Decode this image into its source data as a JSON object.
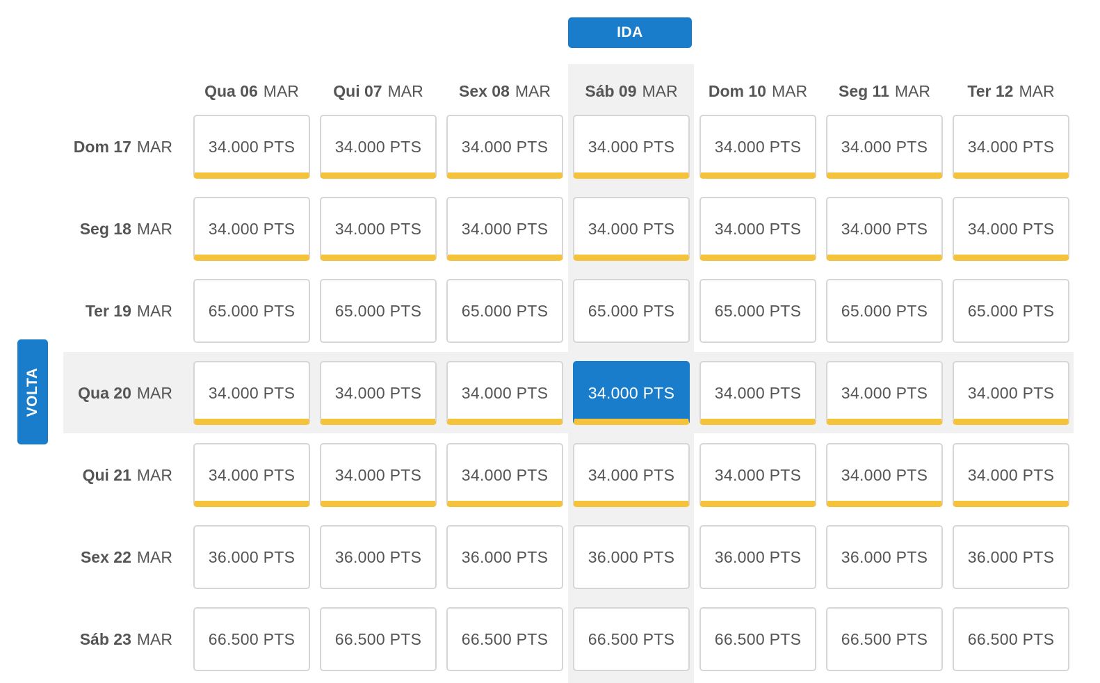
{
  "header": {
    "ida_label": "IDA",
    "volta_label": "VOLTA"
  },
  "columns": [
    {
      "day": "Qua 06",
      "month": "MAR"
    },
    {
      "day": "Qui 07",
      "month": "MAR"
    },
    {
      "day": "Sex 08",
      "month": "MAR"
    },
    {
      "day": "Sáb 09",
      "month": "MAR"
    },
    {
      "day": "Dom 10",
      "month": "MAR"
    },
    {
      "day": "Seg 11",
      "month": "MAR"
    },
    {
      "day": "Ter 12",
      "month": "MAR"
    }
  ],
  "rows": [
    {
      "day": "Dom 17",
      "month": "MAR",
      "price": "34.000 PTS",
      "highlight": true
    },
    {
      "day": "Seg 18",
      "month": "MAR",
      "price": "34.000 PTS",
      "highlight": true
    },
    {
      "day": "Ter 19",
      "month": "MAR",
      "price": "65.000 PTS",
      "highlight": false
    },
    {
      "day": "Qua 20",
      "month": "MAR",
      "price": "34.000 PTS",
      "highlight": true
    },
    {
      "day": "Qui 21",
      "month": "MAR",
      "price": "34.000 PTS",
      "highlight": true
    },
    {
      "day": "Sex 22",
      "month": "MAR",
      "price": "36.000 PTS",
      "highlight": false
    },
    {
      "day": "Sáb 23",
      "month": "MAR",
      "price": "66.500 PTS",
      "highlight": false
    }
  ],
  "selected": {
    "row": 3,
    "col": 3
  },
  "colors": {
    "accent": "#1a7dcb",
    "best_price": "#f5c33b",
    "highlight_bg": "#f1f1f1",
    "text": "#555555"
  }
}
